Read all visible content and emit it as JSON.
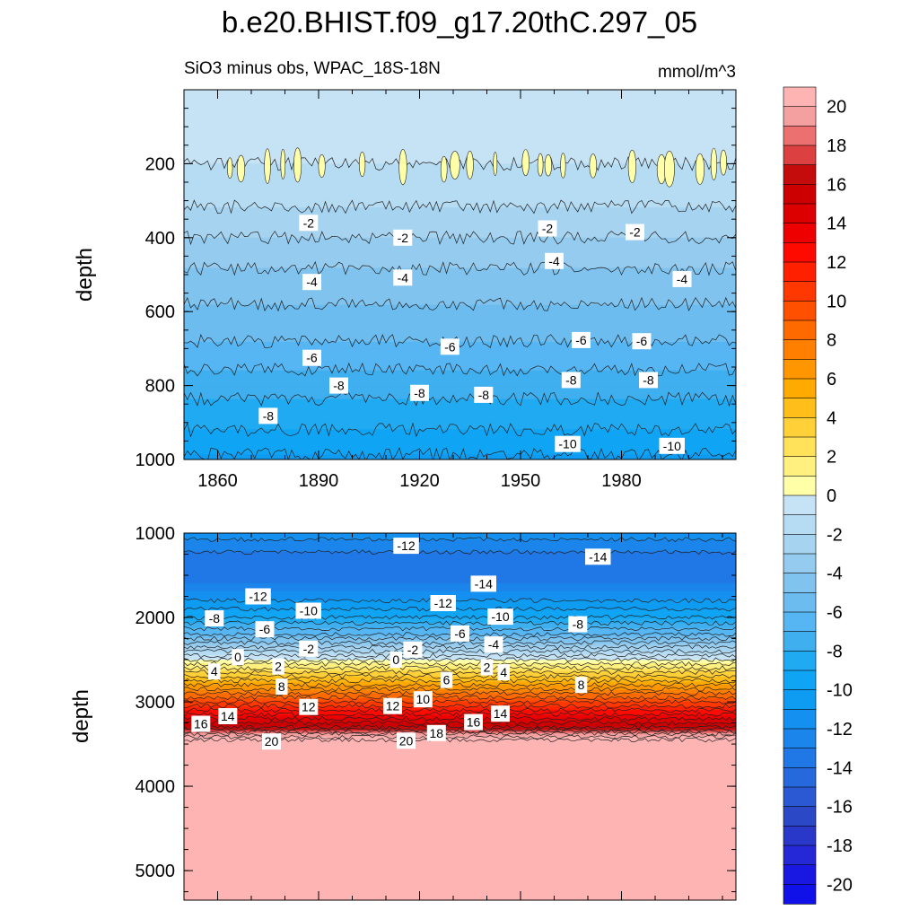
{
  "figure": {
    "title": "b.e20.BHIST.f09_g17.20thC.297_05",
    "subtitle_left": "SiO3 minus obs, WPAC_18S-18N",
    "subtitle_right": "mmol/m^3"
  },
  "chart_data": [
    {
      "type": "heatmap",
      "panel": "upper",
      "ylabel": "depth",
      "xlim": [
        1850,
        2014
      ],
      "ylim": [
        0,
        1000
      ],
      "y_reversed": true,
      "x_ticks": [
        1860,
        1890,
        1920,
        1950,
        1980
      ],
      "y_ticks": [
        200,
        400,
        600,
        800,
        1000
      ],
      "depth_profile": [
        {
          "depth": 60,
          "value": -0.5
        },
        {
          "depth": 120,
          "value": -0.7
        },
        {
          "depth": 200,
          "value": -1.0
        },
        {
          "depth": 300,
          "value": -1.8
        },
        {
          "depth": 400,
          "value": -3.0
        },
        {
          "depth": 500,
          "value": -4.2
        },
        {
          "depth": 600,
          "value": -5.2
        },
        {
          "depth": 700,
          "value": -6.2
        },
        {
          "depth": 800,
          "value": -7.6
        },
        {
          "depth": 900,
          "value": -8.7
        },
        {
          "depth": 1000,
          "value": -10.2
        }
      ],
      "positive_patches_depth_range": [
        150,
        260
      ],
      "contour_labels": [
        {
          "text": "-2",
          "x": 1887,
          "y": 360
        },
        {
          "text": "-2",
          "x": 1915,
          "y": 400
        },
        {
          "text": "-2",
          "x": 1958,
          "y": 375
        },
        {
          "text": "-2",
          "x": 1984,
          "y": 385
        },
        {
          "text": "-4",
          "x": 1888,
          "y": 520
        },
        {
          "text": "-4",
          "x": 1915,
          "y": 508
        },
        {
          "text": "-4",
          "x": 1960,
          "y": 463
        },
        {
          "text": "-4",
          "x": 1998,
          "y": 512
        },
        {
          "text": "-6",
          "x": 1888,
          "y": 725
        },
        {
          "text": "-6",
          "x": 1929,
          "y": 695
        },
        {
          "text": "-6",
          "x": 1968,
          "y": 677
        },
        {
          "text": "-6",
          "x": 1986,
          "y": 680
        },
        {
          "text": "-8",
          "x": 1875,
          "y": 882
        },
        {
          "text": "-8",
          "x": 1896,
          "y": 800
        },
        {
          "text": "-8",
          "x": 1920,
          "y": 820
        },
        {
          "text": "-8",
          "x": 1939,
          "y": 825
        },
        {
          "text": "-8",
          "x": 1965,
          "y": 785
        },
        {
          "text": "-8",
          "x": 1988,
          "y": 785
        },
        {
          "text": "-10",
          "x": 1964,
          "y": 958
        },
        {
          "text": "-10",
          "x": 1995,
          "y": 963
        }
      ]
    },
    {
      "type": "heatmap",
      "panel": "lower",
      "ylabel": "depth",
      "xlim": [
        1850,
        2014
      ],
      "ylim": [
        1000,
        5350
      ],
      "y_reversed": true,
      "y_ticks": [
        1000,
        2000,
        3000,
        4000,
        5000
      ],
      "depth_profile": [
        {
          "depth": 1000,
          "value": -11.5
        },
        {
          "depth": 1300,
          "value": -13.5
        },
        {
          "depth": 1600,
          "value": -13.0
        },
        {
          "depth": 1800,
          "value": -11.0
        },
        {
          "depth": 2000,
          "value": -9.0
        },
        {
          "depth": 2200,
          "value": -6.0
        },
        {
          "depth": 2350,
          "value": -3.0
        },
        {
          "depth": 2450,
          "value": -1.0
        },
        {
          "depth": 2550,
          "value": 1.0
        },
        {
          "depth": 2700,
          "value": 4.0
        },
        {
          "depth": 2850,
          "value": 7.0
        },
        {
          "depth": 3000,
          "value": 10.0
        },
        {
          "depth": 3150,
          "value": 13.0
        },
        {
          "depth": 3300,
          "value": 16.0
        },
        {
          "depth": 3380,
          "value": 19.0
        },
        {
          "depth": 3450,
          "value": 21.0
        },
        {
          "depth": 5350,
          "value": 21.0
        }
      ],
      "contour_labels": [
        {
          "text": "-12",
          "x": 1916,
          "y": 1150
        },
        {
          "text": "-14",
          "x": 1973,
          "y": 1280
        },
        {
          "text": "-12",
          "x": 1872,
          "y": 1750
        },
        {
          "text": "-14",
          "x": 1939,
          "y": 1600
        },
        {
          "text": "-12",
          "x": 1927,
          "y": 1830
        },
        {
          "text": "-10",
          "x": 1887,
          "y": 1920
        },
        {
          "text": "-10",
          "x": 1944,
          "y": 1990
        },
        {
          "text": "-8",
          "x": 1859,
          "y": 2010
        },
        {
          "text": "-8",
          "x": 1967,
          "y": 2080
        },
        {
          "text": "-6",
          "x": 1874,
          "y": 2140
        },
        {
          "text": "-6",
          "x": 1932,
          "y": 2190
        },
        {
          "text": "-4",
          "x": 1942,
          "y": 2320
        },
        {
          "text": "-2",
          "x": 1887,
          "y": 2370
        },
        {
          "text": "-2",
          "x": 1918,
          "y": 2380
        },
        {
          "text": "0",
          "x": 1866,
          "y": 2470
        },
        {
          "text": "0",
          "x": 1913,
          "y": 2500
        },
        {
          "text": "2",
          "x": 1878,
          "y": 2580
        },
        {
          "text": "2",
          "x": 1940,
          "y": 2590
        },
        {
          "text": "4",
          "x": 1859,
          "y": 2640
        },
        {
          "text": "4",
          "x": 1945,
          "y": 2650
        },
        {
          "text": "6",
          "x": 1928,
          "y": 2740
        },
        {
          "text": "8",
          "x": 1879,
          "y": 2820
        },
        {
          "text": "8",
          "x": 1968,
          "y": 2800
        },
        {
          "text": "10",
          "x": 1921,
          "y": 2970
        },
        {
          "text": "12",
          "x": 1887,
          "y": 3060
        },
        {
          "text": "12",
          "x": 1912,
          "y": 3050
        },
        {
          "text": "14",
          "x": 1863,
          "y": 3170
        },
        {
          "text": "14",
          "x": 1944,
          "y": 3140
        },
        {
          "text": "16",
          "x": 1855,
          "y": 3260
        },
        {
          "text": "16",
          "x": 1936,
          "y": 3240
        },
        {
          "text": "18",
          "x": 1925,
          "y": 3370
        },
        {
          "text": "20",
          "x": 1876,
          "y": 3470
        },
        {
          "text": "20",
          "x": 1916,
          "y": 3460
        }
      ]
    }
  ],
  "colorbar": {
    "labels": [
      "20",
      "18",
      "16",
      "14",
      "12",
      "10",
      "8",
      "6",
      "4",
      "2",
      "0",
      "-2",
      "-4",
      "-6",
      "-8",
      "-10",
      "-12",
      "-14",
      "-16",
      "-18",
      "-20"
    ],
    "colors": [
      "#b2b2ff",
      "#a0a0ff",
      "#9090ff",
      "#8080ff",
      "#7070ff",
      "#6060ff",
      "#5050ff",
      "#4040ff",
      "#3030ff",
      "#2020ff",
      "#1010ff",
      "#0000ff",
      "#0000ee",
      "#0000dd",
      "#0000cc",
      "#0000bb",
      "#0000aa",
      "#000099",
      "#000088",
      "#000077",
      "#000066"
    ],
    "neg_colors": [
      "#c6e3f5",
      "#b6dcf3",
      "#a6d3f0",
      "#94cbee",
      "#80c3ee",
      "#6cbcf0",
      "#56b5f3",
      "#3fafef",
      "#20aaf2",
      "#10a4f4",
      "#0e9cf3",
      "#1491f0",
      "#1b85eb",
      "#2078e6",
      "#2669dd",
      "#2a59d3",
      "#2b48c7",
      "#2a38c9",
      "#2428d6",
      "#1818e2",
      "#1010e9",
      "#0a00f0",
      "#2c0af0",
      "#4c12ef",
      "#6a1ced",
      "#8a28ea"
    ],
    "pos_colors": [
      "#ffffa8",
      "#fff080",
      "#ffe15a",
      "#ffd038",
      "#ffbe1a",
      "#ffaa00",
      "#ff9600",
      "#ff8000",
      "#ff6a00",
      "#ff5000",
      "#ff3800",
      "#ff2000",
      "#ff0a00",
      "#ee0000",
      "#dd0000",
      "#cc0000",
      "#c40c0c",
      "#dc4040",
      "#ec7070",
      "#f5a0a0",
      "#ffb4b4"
    ]
  }
}
